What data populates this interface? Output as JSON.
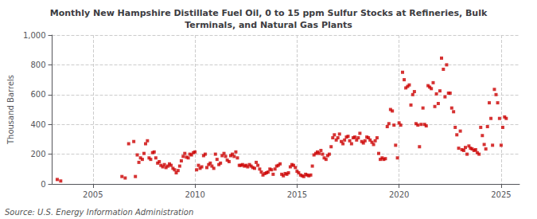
{
  "chart_data": {
    "type": "scatter",
    "title": "Monthly New Hampshire Distillate Fuel Oil, 0 to 15 ppm Sulfur Stocks at Refineries, Bulk\nTerminals, and Natural Gas Plants",
    "ylabel": "Thousand Barrels",
    "annotations": [
      "Source: U.S. Energy Information Administration"
    ],
    "color": "#cc0000",
    "marker": "square",
    "grid": true,
    "xlim": [
      2003.0,
      2025.9
    ],
    "xticks": [
      2005,
      2010,
      2015,
      2020,
      2025
    ],
    "ylim": [
      0,
      1000
    ],
    "yticks": [
      0,
      200,
      400,
      600,
      800,
      {
        "value": 1000,
        "label": "1,000"
      }
    ],
    "x": [
      2003.25,
      2003.42,
      2006.42,
      2006.58,
      2006.75,
      2007.0,
      2007.08,
      2007.17,
      2007.25,
      2007.33,
      2007.42,
      2007.5,
      2007.58,
      2007.67,
      2007.75,
      2007.83,
      2007.92,
      2008.0,
      2008.08,
      2008.17,
      2008.25,
      2008.33,
      2008.42,
      2008.5,
      2008.58,
      2008.67,
      2008.75,
      2008.83,
      2008.92,
      2009.0,
      2009.08,
      2009.17,
      2009.25,
      2009.33,
      2009.42,
      2009.5,
      2009.58,
      2009.67,
      2009.75,
      2009.83,
      2009.92,
      2010.0,
      2010.08,
      2010.17,
      2010.25,
      2010.33,
      2010.42,
      2010.5,
      2010.58,
      2010.67,
      2010.75,
      2010.83,
      2010.92,
      2011.0,
      2011.08,
      2011.17,
      2011.25,
      2011.33,
      2011.42,
      2011.5,
      2011.58,
      2011.67,
      2011.75,
      2011.83,
      2011.92,
      2012.0,
      2012.08,
      2012.17,
      2012.25,
      2012.33,
      2012.42,
      2012.5,
      2012.58,
      2012.67,
      2012.75,
      2012.83,
      2012.92,
      2013.0,
      2013.08,
      2013.17,
      2013.25,
      2013.33,
      2013.42,
      2013.5,
      2013.58,
      2013.67,
      2013.75,
      2013.83,
      2013.92,
      2014.0,
      2014.08,
      2014.17,
      2014.25,
      2014.33,
      2014.42,
      2014.5,
      2014.58,
      2014.67,
      2014.75,
      2014.83,
      2014.92,
      2015.0,
      2015.08,
      2015.17,
      2015.25,
      2015.33,
      2015.42,
      2015.5,
      2015.58,
      2015.67,
      2015.75,
      2015.83,
      2015.92,
      2016.0,
      2016.08,
      2016.17,
      2016.25,
      2016.33,
      2016.42,
      2016.5,
      2016.58,
      2016.67,
      2016.75,
      2016.83,
      2016.92,
      2017.0,
      2017.08,
      2017.17,
      2017.25,
      2017.33,
      2017.42,
      2017.5,
      2017.58,
      2017.67,
      2017.75,
      2017.83,
      2017.92,
      2018.0,
      2018.08,
      2018.17,
      2018.25,
      2018.33,
      2018.42,
      2018.5,
      2018.58,
      2018.67,
      2018.75,
      2018.83,
      2018.92,
      2019.0,
      2019.08,
      2019.17,
      2019.25,
      2019.33,
      2019.42,
      2019.5,
      2019.58,
      2019.67,
      2019.75,
      2019.83,
      2019.92,
      2020.0,
      2020.08,
      2020.17,
      2020.25,
      2020.33,
      2020.42,
      2020.5,
      2020.58,
      2020.67,
      2020.75,
      2020.83,
      2020.92,
      2021.0,
      2021.08,
      2021.17,
      2021.25,
      2021.33,
      2021.42,
      2021.5,
      2021.58,
      2021.67,
      2021.75,
      2021.83,
      2021.92,
      2022.0,
      2022.08,
      2022.17,
      2022.25,
      2022.33,
      2022.42,
      2022.5,
      2022.58,
      2022.67,
      2022.75,
      2022.83,
      2022.92,
      2023.0,
      2023.08,
      2023.17,
      2023.25,
      2023.33,
      2023.42,
      2023.5,
      2023.58,
      2023.67,
      2023.75,
      2023.83,
      2023.92,
      2024.0,
      2024.08,
      2024.17,
      2024.25,
      2024.33,
      2024.42,
      2024.5,
      2024.58,
      2024.67,
      2024.75,
      2024.83,
      2024.92,
      2025.0,
      2025.08,
      2025.17,
      2025.25
    ],
    "values": [
      30,
      20,
      50,
      40,
      270,
      285,
      50,
      195,
      145,
      175,
      165,
      205,
      270,
      290,
      175,
      165,
      210,
      215,
      175,
      140,
      150,
      125,
      115,
      130,
      110,
      120,
      135,
      125,
      105,
      95,
      75,
      90,
      120,
      155,
      185,
      205,
      180,
      175,
      200,
      195,
      210,
      215,
      95,
      125,
      105,
      115,
      190,
      200,
      110,
      130,
      140,
      120,
      105,
      200,
      165,
      130,
      140,
      190,
      205,
      185,
      160,
      150,
      190,
      200,
      185,
      215,
      175,
      125,
      125,
      130,
      120,
      125,
      115,
      130,
      120,
      110,
      105,
      145,
      125,
      100,
      80,
      60,
      70,
      75,
      80,
      100,
      95,
      65,
      100,
      120,
      125,
      135,
      65,
      55,
      70,
      65,
      75,
      115,
      130,
      125,
      110,
      85,
      75,
      60,
      55,
      50,
      65,
      60,
      55,
      60,
      120,
      195,
      205,
      215,
      205,
      225,
      200,
      175,
      165,
      190,
      200,
      250,
      310,
      330,
      295,
      310,
      335,
      285,
      270,
      295,
      315,
      320,
      290,
      270,
      310,
      315,
      295,
      310,
      340,
      285,
      275,
      290,
      315,
      310,
      295,
      280,
      265,
      290,
      310,
      205,
      165,
      175,
      165,
      170,
      385,
      405,
      500,
      490,
      395,
      260,
      175,
      410,
      395,
      750,
      700,
      645,
      655,
      665,
      530,
      600,
      620,
      405,
      395,
      250,
      400,
      510,
      400,
      390,
      660,
      650,
      640,
      680,
      520,
      605,
      540,
      625,
      845,
      770,
      585,
      800,
      610,
      610,
      510,
      485,
      380,
      330,
      240,
      355,
      230,
      225,
      245,
      200,
      255,
      240,
      235,
      225,
      230,
      210,
      200,
      380,
      325,
      265,
      235,
      385,
      545,
      440,
      260,
      635,
      600,
      545,
      440,
      260,
      380,
      450,
      440
    ]
  }
}
